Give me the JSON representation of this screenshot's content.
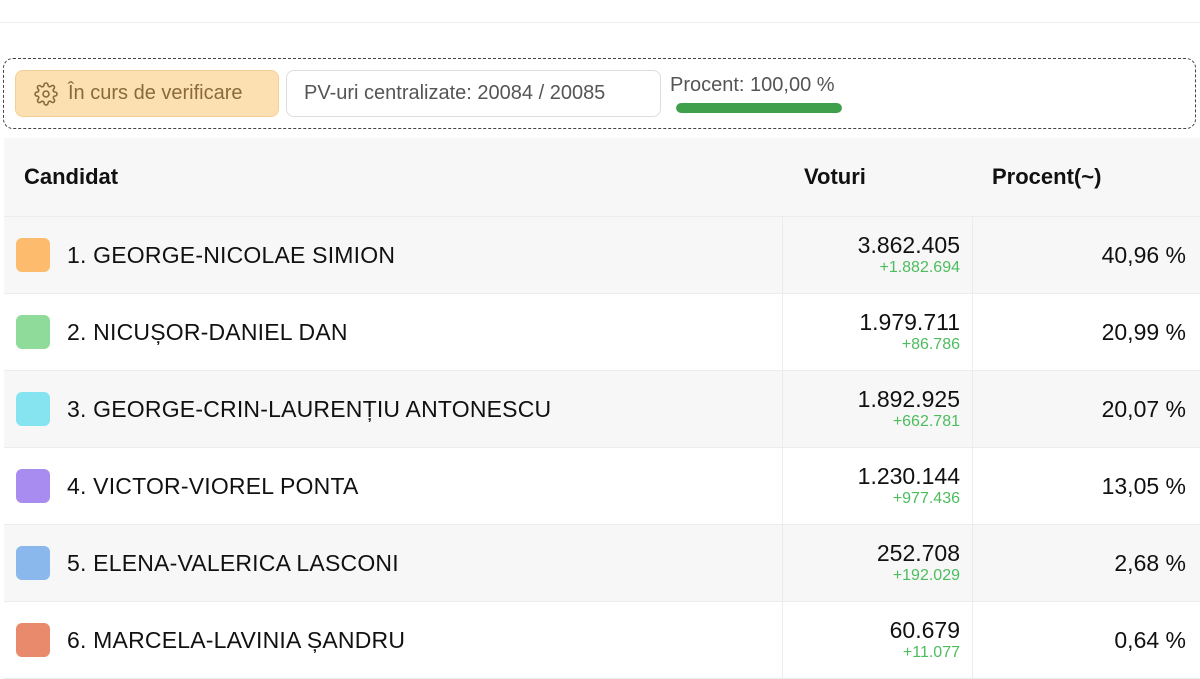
{
  "status": {
    "label": "În curs de verificare",
    "icon": "gear-icon",
    "pv_label": "PV-uri centralizate: 20084 / 20085",
    "procent_label": "Procent: 100,00 %",
    "progress_fraction": 1.0,
    "progress_color": "#3f9f4a"
  },
  "table": {
    "headers": {
      "candidat": "Candidat",
      "voturi": "Voturi",
      "procent": "Procent(~)"
    },
    "rows": [
      {
        "name": "1. GEORGE-NICOLAE SIMION",
        "votes": "3.862.405",
        "delta": "+1.882.694",
        "percent": "40,96 %",
        "color": "#fdbb6e"
      },
      {
        "name": "2. NICUȘOR-DANIEL DAN",
        "votes": "1.979.711",
        "delta": "+86.786",
        "percent": "20,99 %",
        "color": "#8edb9a"
      },
      {
        "name": "3. GEORGE-CRIN-LAURENȚIU ANTONESCU",
        "votes": "1.892.925",
        "delta": "+662.781",
        "percent": "20,07 %",
        "color": "#86e4f1"
      },
      {
        "name": "4. VICTOR-VIOREL PONTA",
        "votes": "1.230.144",
        "delta": "+977.436",
        "percent": "13,05 %",
        "color": "#a98cef"
      },
      {
        "name": "5. ELENA-VALERICA LASCONI",
        "votes": "252.708",
        "delta": "+192.029",
        "percent": "2,68 %",
        "color": "#8ab7ec"
      },
      {
        "name": "6. MARCELA-LAVINIA ȘANDRU",
        "votes": "60.679",
        "delta": "+11.077",
        "percent": "0,64 %",
        "color": "#e98a6c"
      }
    ]
  }
}
